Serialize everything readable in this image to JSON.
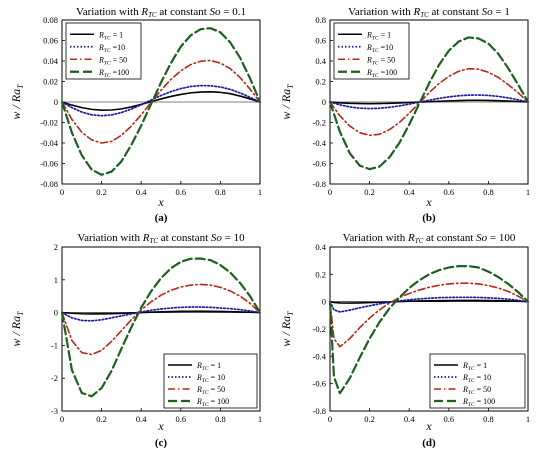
{
  "figure": {
    "background": "#ffffff",
    "line_styles": [
      "solid",
      "dotted",
      "dashdot",
      "dashed"
    ],
    "colors": [
      "#000000",
      "#1a1aa6",
      "#b32a17",
      "#1f5f1f"
    ]
  },
  "chart_data": [
    {
      "id": "a",
      "type": "line",
      "caption": "(a)",
      "title": "Variation with R_TC at constant So = 0.1",
      "title_prefix": "Variation with",
      "title_var": "R",
      "title_sub": "TC",
      "title_suffix": "at constant",
      "title_param": "So",
      "title_value": "= 0.1",
      "xlabel": "x",
      "ylabel": "w / Ra_T",
      "xlim": [
        0,
        1
      ],
      "ylim": [
        -0.08,
        0.08
      ],
      "xticks": [
        "0",
        "0.2",
        "0.4",
        "0.6",
        "0.8",
        "1"
      ],
      "yticks": [
        "-0.08",
        "-0.06",
        "-0.04",
        "-0.02",
        "0",
        "0.02",
        "0.04",
        "0.06",
        "0.08"
      ],
      "legend_position": "top-left",
      "x": [
        0,
        0.05,
        0.1,
        0.15,
        0.2,
        0.25,
        0.3,
        0.35,
        0.4,
        0.45,
        0.5,
        0.55,
        0.6,
        0.65,
        0.7,
        0.75,
        0.8,
        0.85,
        0.9,
        0.95,
        1
      ],
      "series": [
        {
          "name": "R_TC = 1",
          "legend_value": "= 1",
          "values": [
            0,
            -0.003,
            -0.0055,
            -0.0072,
            -0.008,
            -0.0078,
            -0.0067,
            -0.0048,
            -0.0023,
            0.0004,
            0.003,
            0.0054,
            0.0074,
            0.0089,
            0.0097,
            0.0099,
            0.0094,
            0.0081,
            0.0058,
            0.003,
            0
          ]
        },
        {
          "name": "R_TC = 10",
          "legend_value": "=10",
          "values": [
            0,
            -0.0055,
            -0.0098,
            -0.0125,
            -0.0134,
            -0.0126,
            -0.0103,
            -0.0069,
            -0.0027,
            0.0019,
            0.0063,
            0.0101,
            0.0131,
            0.0151,
            0.016,
            0.0158,
            0.0146,
            0.0123,
            0.0088,
            0.0045,
            0
          ]
        },
        {
          "name": "R_TC = 50",
          "legend_value": "= 50",
          "values": [
            0,
            -0.017,
            -0.0295,
            -0.037,
            -0.04,
            -0.0385,
            -0.0325,
            -0.0235,
            -0.0125,
            -0.0005,
            0.0115,
            0.022,
            0.0305,
            0.0365,
            0.0398,
            0.0405,
            0.038,
            0.0325,
            0.0237,
            0.0125,
            0
          ]
        },
        {
          "name": "R_TC = 100",
          "legend_value": "=100",
          "values": [
            0,
            -0.03,
            -0.052,
            -0.066,
            -0.071,
            -0.068,
            -0.058,
            -0.042,
            -0.023,
            -0.002,
            0.019,
            0.038,
            0.054,
            0.065,
            0.071,
            0.072,
            0.068,
            0.058,
            0.043,
            0.023,
            0
          ]
        }
      ]
    },
    {
      "id": "b",
      "type": "line",
      "caption": "(b)",
      "title": "Variation with R_TC at constant So = 1",
      "title_prefix": "Variation with",
      "title_var": "R",
      "title_sub": "TC",
      "title_suffix": "at constant",
      "title_param": "So",
      "title_value": "= 1",
      "xlabel": "x",
      "ylabel": "w / Ra_T",
      "xlim": [
        0,
        1
      ],
      "ylim": [
        -0.8,
        0.8
      ],
      "xticks": [
        "0",
        "0.2",
        "0.4",
        "0.6",
        "0.8",
        "1"
      ],
      "yticks": [
        "-0.8",
        "-0.6",
        "-0.4",
        "-0.2",
        "0",
        "0.2",
        "0.4",
        "0.6",
        "0.8"
      ],
      "legend_position": "top-left",
      "x": [
        0,
        0.05,
        0.1,
        0.15,
        0.2,
        0.25,
        0.3,
        0.35,
        0.4,
        0.45,
        0.5,
        0.55,
        0.6,
        0.65,
        0.7,
        0.75,
        0.8,
        0.85,
        0.9,
        0.95,
        1
      ],
      "series": [
        {
          "name": "R_TC = 1",
          "legend_value": "= 1",
          "values": [
            0,
            -0.008,
            -0.013,
            -0.015,
            -0.016,
            -0.015,
            -0.013,
            -0.009,
            -0.005,
            -0.001,
            0.003,
            0.007,
            0.011,
            0.014,
            0.016,
            0.016,
            0.015,
            0.013,
            0.009,
            0.005,
            0
          ]
        },
        {
          "name": "R_TC = 10",
          "legend_value": "=10",
          "values": [
            0,
            -0.028,
            -0.048,
            -0.06,
            -0.064,
            -0.061,
            -0.052,
            -0.038,
            -0.021,
            -0.002,
            0.017,
            0.035,
            0.05,
            0.061,
            0.067,
            0.068,
            0.064,
            0.055,
            0.04,
            0.021,
            0
          ]
        },
        {
          "name": "R_TC = 50",
          "legend_value": "= 50",
          "values": [
            0,
            -0.135,
            -0.235,
            -0.3,
            -0.325,
            -0.315,
            -0.27,
            -0.2,
            -0.11,
            -0.01,
            0.09,
            0.18,
            0.25,
            0.3,
            0.325,
            0.32,
            0.29,
            0.24,
            0.17,
            0.09,
            0
          ]
        },
        {
          "name": "R_TC = 100",
          "legend_value": "=100",
          "values": [
            0,
            -0.29,
            -0.5,
            -0.62,
            -0.655,
            -0.63,
            -0.54,
            -0.4,
            -0.22,
            -0.02,
            0.18,
            0.36,
            0.5,
            0.59,
            0.63,
            0.62,
            0.57,
            0.47,
            0.33,
            0.17,
            0
          ]
        }
      ]
    },
    {
      "id": "c",
      "type": "line",
      "caption": "(c)",
      "title": "Variation with R_TC at constant So = 10",
      "title_prefix": "Variation with",
      "title_var": "R",
      "title_sub": "TC",
      "title_suffix": "at constant",
      "title_param": "So",
      "title_value": "= 10",
      "xlabel": "x",
      "ylabel": "w / Ra_T",
      "xlim": [
        0,
        1
      ],
      "ylim": [
        -3,
        2
      ],
      "xticks": [
        "0",
        "0.2",
        "0.4",
        "0.6",
        "0.8",
        "1"
      ],
      "yticks": [
        "-3",
        "-2",
        "-1",
        "0",
        "1",
        "2"
      ],
      "legend_position": "bottom-right",
      "x": [
        0,
        0.05,
        0.1,
        0.15,
        0.2,
        0.25,
        0.3,
        0.35,
        0.4,
        0.45,
        0.5,
        0.55,
        0.6,
        0.65,
        0.7,
        0.75,
        0.8,
        0.85,
        0.9,
        0.95,
        1
      ],
      "series": [
        {
          "name": "R_TC = 1",
          "legend_value": "= 1",
          "values": [
            0,
            -0.02,
            -0.035,
            -0.04,
            -0.038,
            -0.032,
            -0.022,
            -0.01,
            0.002,
            0.014,
            0.024,
            0.032,
            0.038,
            0.041,
            0.042,
            0.04,
            0.036,
            0.03,
            0.021,
            0.011,
            0
          ]
        },
        {
          "name": "R_TC = 10",
          "legend_value": "= 10",
          "values": [
            0,
            -0.16,
            -0.24,
            -0.25,
            -0.22,
            -0.16,
            -0.1,
            -0.04,
            0.02,
            0.07,
            0.11,
            0.14,
            0.16,
            0.17,
            0.17,
            0.16,
            0.14,
            0.12,
            0.09,
            0.05,
            0
          ]
        },
        {
          "name": "R_TC = 50",
          "legend_value": "= 50",
          "values": [
            0,
            -0.85,
            -1.22,
            -1.28,
            -1.15,
            -0.88,
            -0.55,
            -0.22,
            0.08,
            0.33,
            0.53,
            0.68,
            0.78,
            0.84,
            0.86,
            0.84,
            0.77,
            0.66,
            0.5,
            0.28,
            0
          ]
        },
        {
          "name": "R_TC = 100",
          "legend_value": "= 100",
          "values": [
            0,
            -1.75,
            -2.45,
            -2.55,
            -2.3,
            -1.78,
            -1.1,
            -0.45,
            0.15,
            0.65,
            1.05,
            1.35,
            1.55,
            1.64,
            1.65,
            1.6,
            1.45,
            1.22,
            0.9,
            0.5,
            0
          ]
        }
      ]
    },
    {
      "id": "d",
      "type": "line",
      "caption": "(d)",
      "title": "Variation with R_TC at constant So = 100",
      "title_prefix": "Variation with",
      "title_var": "R",
      "title_sub": "TC",
      "title_suffix": "at constant",
      "title_param": "So",
      "title_value": "= 100",
      "xlabel": "x",
      "ylabel": "w / Ra_T",
      "xlim": [
        0,
        1
      ],
      "ylim": [
        -0.8,
        0.4
      ],
      "xticks": [
        "0",
        "0.2",
        "0.4",
        "0.6",
        "0.8",
        "1"
      ],
      "yticks": [
        "-0.8",
        "-0.6",
        "-0.4",
        "-0.2",
        "0",
        "0.2",
        "0.4"
      ],
      "legend_position": "bottom-right",
      "x": [
        0,
        0.02,
        0.05,
        0.1,
        0.15,
        0.2,
        0.25,
        0.3,
        0.35,
        0.4,
        0.45,
        0.5,
        0.55,
        0.6,
        0.65,
        0.7,
        0.75,
        0.8,
        0.85,
        0.9,
        0.95,
        1
      ],
      "series": [
        {
          "name": "R_TC = 1",
          "legend_value": "= 1",
          "values": [
            0,
            -0.006,
            -0.009,
            -0.01,
            -0.009,
            -0.007,
            -0.004,
            -0.002,
            0.001,
            0.003,
            0.005,
            0.006,
            0.007,
            0.008,
            0.009,
            0.009,
            0.009,
            0.008,
            0.007,
            0.005,
            0.003,
            0
          ]
        },
        {
          "name": "R_TC = 10",
          "legend_value": "= 10",
          "values": [
            0,
            -0.06,
            -0.075,
            -0.062,
            -0.045,
            -0.03,
            -0.016,
            -0.004,
            0.006,
            0.014,
            0.02,
            0.025,
            0.029,
            0.031,
            0.032,
            0.032,
            0.031,
            0.028,
            0.024,
            0.018,
            0.01,
            0
          ]
        },
        {
          "name": "R_TC = 50",
          "legend_value": "= 50",
          "values": [
            0,
            -0.27,
            -0.33,
            -0.27,
            -0.19,
            -0.12,
            -0.06,
            -0.01,
            0.03,
            0.06,
            0.085,
            0.105,
            0.12,
            0.13,
            0.135,
            0.135,
            0.13,
            0.118,
            0.1,
            0.075,
            0.04,
            0
          ]
        },
        {
          "name": "R_TC = 100",
          "legend_value": "= 100",
          "values": [
            0,
            -0.55,
            -0.67,
            -0.56,
            -0.41,
            -0.27,
            -0.15,
            -0.05,
            0.03,
            0.1,
            0.155,
            0.2,
            0.23,
            0.25,
            0.26,
            0.26,
            0.25,
            0.22,
            0.18,
            0.13,
            0.07,
            0
          ]
        }
      ]
    }
  ]
}
